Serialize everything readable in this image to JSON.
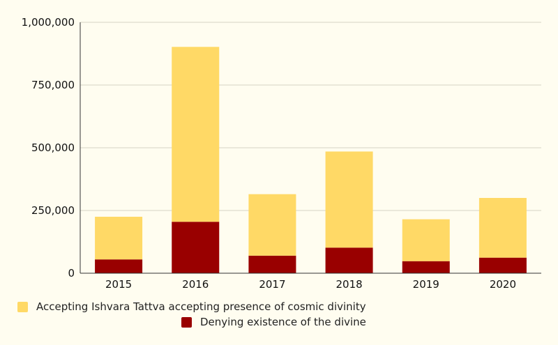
{
  "chart_data": {
    "type": "bar",
    "stacked": true,
    "categories": [
      "2015",
      "2016",
      "2017",
      "2018",
      "2019",
      "2020"
    ],
    "series": [
      {
        "name": "Denying existence of the divine",
        "color": "#990000",
        "values": [
          55000,
          205000,
          70000,
          102000,
          48000,
          62000
        ]
      },
      {
        "name": "Accepting Ishvara Tattva accepting presence of cosmic divinity",
        "color": "#ffd966",
        "values": [
          170000,
          697000,
          245000,
          383000,
          167000,
          238000
        ]
      }
    ],
    "y_ticks": [
      "0",
      "250,000",
      "500,000",
      "750,000",
      "1,000,000"
    ],
    "ylim": [
      0,
      1000000
    ],
    "grid": true,
    "legend_position": "bottom"
  },
  "legend": {
    "item1": "Accepting Ishvara Tattva accepting presence of cosmic divinity",
    "item2": "Denying existence of the divine"
  }
}
